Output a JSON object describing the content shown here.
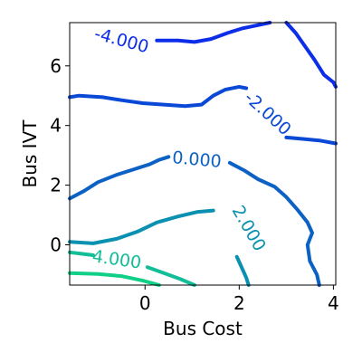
{
  "chart_data": {
    "type": "contour",
    "xlabel": "Bus Cost",
    "ylabel": "Bus IVT",
    "xlim": [
      -1.6,
      4.05
    ],
    "ylim": [
      -1.35,
      7.45
    ],
    "x_ticks": [
      0,
      2,
      4
    ],
    "x_tick_labels": [
      "0",
      "2",
      "4"
    ],
    "y_ticks": [
      0,
      2,
      4,
      6
    ],
    "y_tick_labels": [
      "0",
      "2",
      "4",
      "6"
    ],
    "grid": false,
    "levels": [
      {
        "value": -4,
        "label": "-4.000",
        "color": "#0d2ee8",
        "label_at": [
          -0.5,
          6.85
        ],
        "label_angle": 15,
        "segments": [
          [
            [
              0.25,
              6.85
            ],
            [
              0.7,
              6.85
            ],
            [
              1.05,
              6.8
            ],
            [
              1.4,
              6.9
            ],
            [
              1.75,
              7.1
            ],
            [
              2.05,
              7.25
            ],
            [
              2.35,
              7.35
            ],
            [
              2.65,
              7.45
            ]
          ],
          [
            [
              3.0,
              7.45
            ],
            [
              3.2,
              7.1
            ],
            [
              3.4,
              6.65
            ],
            [
              3.6,
              6.2
            ],
            [
              3.8,
              5.7
            ],
            [
              4.0,
              5.45
            ],
            [
              4.05,
              5.3
            ]
          ]
        ]
      },
      {
        "value": -2,
        "label": "-2.000",
        "color": "#0a48d6",
        "label_at": [
          2.6,
          4.4
        ],
        "label_angle": 42,
        "segments": [
          [
            [
              -1.6,
              4.95
            ],
            [
              -1.4,
              5.0
            ],
            [
              -0.9,
              4.95
            ],
            [
              -0.5,
              4.85
            ],
            [
              -0.05,
              4.75
            ],
            [
              0.4,
              4.7
            ],
            [
              0.85,
              4.65
            ],
            [
              1.2,
              4.7
            ],
            [
              1.45,
              5.0
            ],
            [
              1.7,
              5.2
            ],
            [
              2.0,
              5.3
            ],
            [
              2.15,
              5.25
            ]
          ],
          [
            [
              3.0,
              3.6
            ],
            [
              3.35,
              3.55
            ],
            [
              3.7,
              3.5
            ],
            [
              4.05,
              3.4
            ]
          ]
        ]
      },
      {
        "value": 0,
        "label": "0.000",
        "color": "#0c62c4",
        "label_at": [
          1.1,
          2.85
        ],
        "label_angle": 5,
        "segments": [
          [
            [
              -1.6,
              1.55
            ],
            [
              -1.3,
              1.8
            ],
            [
              -1.0,
              2.1
            ],
            [
              -0.6,
              2.35
            ],
            [
              -0.2,
              2.55
            ],
            [
              0.1,
              2.7
            ],
            [
              0.3,
              2.85
            ],
            [
              0.5,
              2.95
            ]
          ],
          [
            [
              1.8,
              2.75
            ],
            [
              2.1,
              2.5
            ],
            [
              2.4,
              2.2
            ],
            [
              2.75,
              1.95
            ],
            [
              3.0,
              1.6
            ],
            [
              3.25,
              1.15
            ],
            [
              3.45,
              0.75
            ],
            [
              3.55,
              0.4
            ],
            [
              3.45,
              0.0
            ],
            [
              3.5,
              -0.55
            ],
            [
              3.65,
              -1.0
            ],
            [
              3.7,
              -1.35
            ]
          ]
        ]
      },
      {
        "value": 2,
        "label": "2.000",
        "color": "#0a90b0",
        "label_at": [
          2.2,
          0.55
        ],
        "label_angle": 60,
        "segments": [
          [
            [
              -1.6,
              0.1
            ],
            [
              -1.1,
              0.05
            ],
            [
              -0.6,
              0.2
            ],
            [
              -0.15,
              0.45
            ],
            [
              0.25,
              0.75
            ],
            [
              0.7,
              0.95
            ],
            [
              1.1,
              1.1
            ],
            [
              1.45,
              1.15
            ]
          ],
          [
            [
              1.95,
              -0.4
            ],
            [
              2.05,
              -0.75
            ],
            [
              2.15,
              -1.1
            ],
            [
              2.2,
              -1.35
            ]
          ]
        ]
      },
      {
        "value": 4,
        "label": "4.000",
        "color": "#12bd98",
        "label_at": [
          -0.6,
          -0.5
        ],
        "label_angle": 8,
        "segments": [
          [
            [
              -1.6,
              -0.25
            ],
            [
              -1.35,
              -0.3
            ],
            [
              -1.1,
              -0.35
            ]
          ],
          [
            [
              0.05,
              -0.75
            ],
            [
              0.4,
              -0.95
            ],
            [
              0.75,
              -1.15
            ],
            [
              1.05,
              -1.35
            ]
          ]
        ]
      },
      {
        "value": 6,
        "label": "",
        "color": "#10cf86",
        "label_at": null,
        "label_angle": 0,
        "segments": [
          [
            [
              -1.6,
              -0.95
            ],
            [
              -1.0,
              -0.98
            ],
            [
              -0.5,
              -1.05
            ],
            [
              -0.05,
              -1.2
            ],
            [
              0.3,
              -1.35
            ]
          ]
        ]
      }
    ]
  }
}
